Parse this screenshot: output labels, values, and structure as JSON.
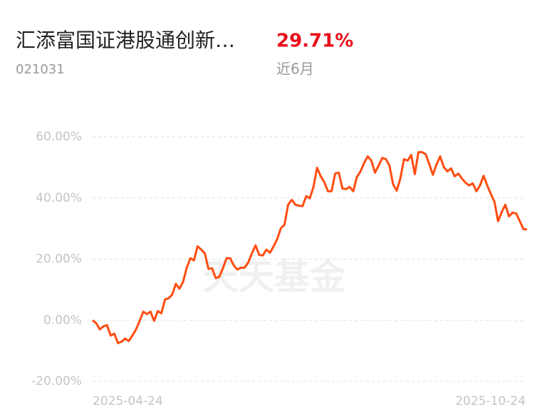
{
  "header": {
    "title": "汇添富国证港股通创新…",
    "return": "29.71%",
    "code": "021031",
    "period": "近6月"
  },
  "chart_data": {
    "type": "line",
    "watermark": "天天基金",
    "categories": [
      "2025-04-24",
      null,
      null,
      null,
      null,
      null,
      null,
      null,
      null,
      null,
      null,
      null,
      null,
      null,
      null,
      null,
      null,
      null,
      null,
      null,
      null,
      null,
      null,
      null,
      null,
      null,
      null,
      null,
      null,
      null,
      null,
      null,
      null,
      null,
      null,
      null,
      null,
      null,
      null,
      null,
      null,
      null,
      null,
      null,
      null,
      null,
      null,
      null,
      null,
      null,
      null,
      null,
      null,
      null,
      null,
      null,
      null,
      null,
      null,
      null,
      null,
      null,
      null,
      null,
      null,
      null,
      null,
      null,
      null,
      null,
      null,
      null,
      null,
      null,
      null,
      null,
      null,
      null,
      null,
      null,
      null,
      null,
      null,
      null,
      null,
      null,
      null,
      null,
      null,
      null,
      null,
      null,
      null,
      null,
      null,
      null,
      null,
      null,
      null,
      null,
      null,
      null,
      null,
      null,
      null,
      null,
      null,
      null,
      null,
      null,
      null,
      null,
      null,
      null,
      null,
      null,
      null,
      null,
      null,
      null,
      "2025-10-24"
    ],
    "series": [
      {
        "color": "#ff4d12",
        "values": [
          0,
          -1,
          -3,
          -2,
          -1.6,
          -5,
          -4.4,
          -7.5,
          -7,
          -6,
          -6.8,
          -5,
          -3,
          -0.2,
          2.8,
          2,
          2.8,
          -0.2,
          3,
          2.3,
          6.8,
          7.2,
          8.4,
          11.9,
          10.3,
          12.6,
          17.2,
          20.3,
          19.6,
          24.2,
          23.1,
          21.9,
          16.8,
          17,
          13.8,
          14.2,
          17,
          20.3,
          20.3,
          17.9,
          16.6,
          17.2,
          17.2,
          18.9,
          21.9,
          24.5,
          21.4,
          21.2,
          23.1,
          22.1,
          24.2,
          26.6,
          30.1,
          31.2,
          37.8,
          39.4,
          37.8,
          37.5,
          37.3,
          40.6,
          39.9,
          43.6,
          49.9,
          47.1,
          45.2,
          42.2,
          42.2,
          48,
          48.3,
          43.1,
          42.9,
          43.6,
          42.2,
          46.9,
          48.7,
          51.5,
          53.6,
          52.2,
          48.3,
          50.6,
          53.1,
          52.7,
          50.6,
          44.5,
          42.4,
          46.4,
          52.7,
          52.2,
          54.1,
          47.8,
          55,
          55,
          54.3,
          51,
          47.6,
          51,
          53.6,
          50.1,
          48.7,
          49.7,
          47.1,
          48,
          46.4,
          45,
          44.1,
          44.8,
          42.2,
          44.1,
          47.3,
          44.1,
          41.3,
          38.7,
          32.4,
          35.4,
          37.8,
          34,
          35.2,
          34.9,
          32.4,
          29.8,
          29.71
        ]
      }
    ],
    "ylim": [
      -20,
      60
    ],
    "yticks": [
      {
        "value": 60,
        "label": "60.00%"
      },
      {
        "value": 40,
        "label": "40.00%"
      },
      {
        "value": 20,
        "label": "20.00%"
      },
      {
        "value": 0,
        "label": "0.00%"
      },
      {
        "value": -20,
        "label": "-20.00%"
      }
    ],
    "grid": true
  }
}
